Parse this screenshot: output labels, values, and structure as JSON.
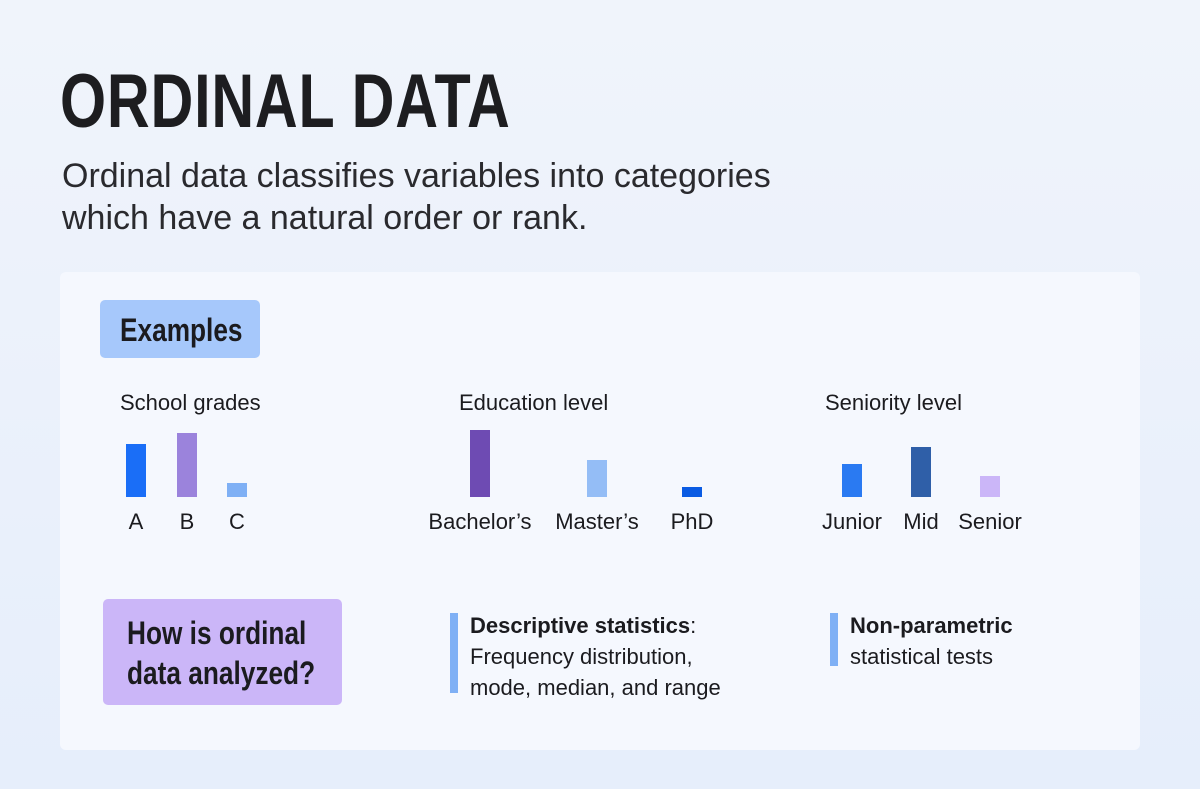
{
  "title": "ORDINAL DATA",
  "subtitle_lines": [
    "Ordinal data classifies variables into categories",
    "which have a natural order or rank."
  ],
  "examples_label": "Examples",
  "chart_data": [
    {
      "type": "bar",
      "title": "School grades",
      "categories": [
        "A",
        "B",
        "C"
      ],
      "values": [
        53,
        64,
        14
      ],
      "colors": [
        "#1a6ef7",
        "#9b83dc",
        "#7fb0f5"
      ]
    },
    {
      "type": "bar",
      "title": "Education level",
      "categories": [
        "Bachelor’s",
        "Master’s",
        "PhD"
      ],
      "values": [
        67,
        37,
        10
      ],
      "colors": [
        "#6e4bb3",
        "#94bdf6",
        "#0a5be3"
      ]
    },
    {
      "type": "bar",
      "title": "Seniority level",
      "categories": [
        "Junior",
        "Mid",
        "Senior"
      ],
      "values": [
        33,
        50,
        21
      ],
      "colors": [
        "#2a7af2",
        "#2f5fa8",
        "#cbb6f8"
      ]
    }
  ],
  "question": "How is ordinal data analyzed?",
  "methods": [
    {
      "bold": "Descriptive statistics",
      "suffix": ":",
      "lines": [
        "Frequency distribution,",
        "mode, median, and range"
      ]
    },
    {
      "bold": "Non-parametric",
      "suffix": "",
      "lines": [
        "statistical tests"
      ]
    }
  ],
  "accent_color": "#7fb0f5"
}
